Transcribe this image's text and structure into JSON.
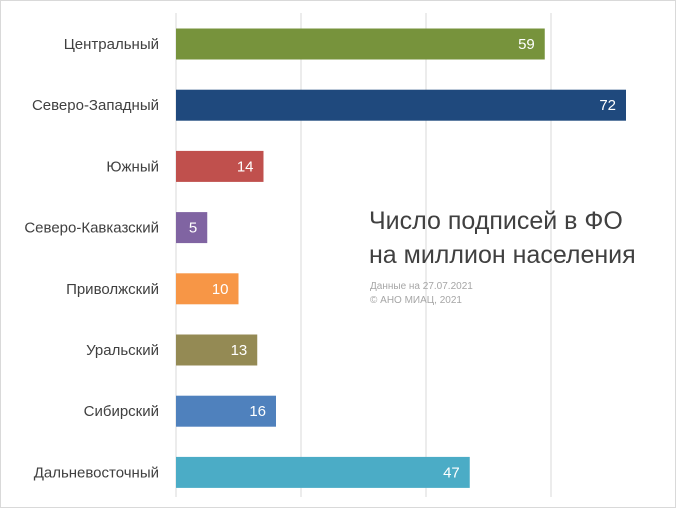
{
  "chart_data": {
    "type": "bar",
    "orientation": "horizontal",
    "title": [
      "Число подписей в ФО",
      "на миллион населения"
    ],
    "source_note": [
      "Данные на 27.07.2021",
      "© АНО МИАЦ, 2021"
    ],
    "xlim": [
      0,
      80
    ],
    "grid": true,
    "legend": "none",
    "categories": [
      "Центральный",
      "Северо-Западный",
      "Южный",
      "Северо-Кавказский",
      "Приволжский",
      "Уральский",
      "Сибирский",
      "Дальневосточный"
    ],
    "values": [
      59,
      72,
      14,
      5,
      10,
      13,
      16,
      47
    ],
    "value_labels": [
      "59",
      "72",
      "14",
      "5",
      "10",
      "13",
      "16",
      "47"
    ],
    "colors": [
      "#77933c",
      "#1f497d",
      "#c0504d",
      "#8064a2",
      "#f79646",
      "#948a54",
      "#4f81bd",
      "#4bacc6"
    ]
  }
}
